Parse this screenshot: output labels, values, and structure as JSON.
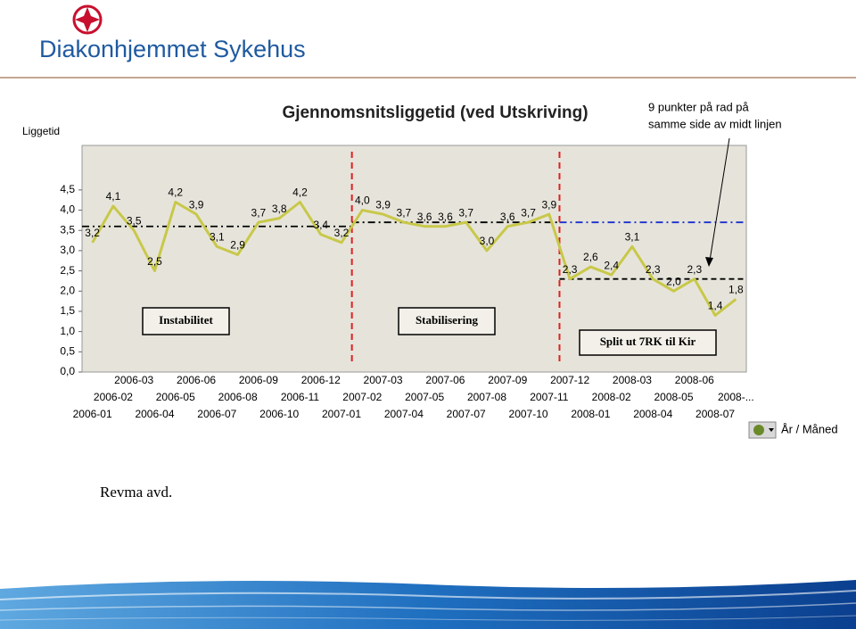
{
  "header": {
    "organization": "Diakonhjemmet Sykehus"
  },
  "chart_data": {
    "type": "line",
    "title": "Gjennomsnitsliggetid (ved Utskriving)",
    "y_label": "Liggetid",
    "categories": [
      "2006-01",
      "2006-02",
      "2006-03",
      "2006-04",
      "2006-05",
      "2006-06",
      "2006-07",
      "2006-08",
      "2006-09",
      "2006-10",
      "2006-11",
      "2006-12",
      "2007-01",
      "2007-02",
      "2007-03",
      "2007-04",
      "2007-05",
      "2007-06",
      "2007-07",
      "2007-08",
      "2007-09",
      "2007-10",
      "2007-11",
      "2007-12",
      "2008-01",
      "2008-02",
      "2008-03",
      "2008-04",
      "2008-05",
      "2008-06",
      "2008-07",
      "2008-..."
    ],
    "values": [
      3.2,
      4.1,
      3.5,
      2.5,
      4.2,
      3.9,
      3.1,
      2.9,
      3.7,
      3.8,
      4.2,
      3.4,
      3.2,
      4.0,
      3.9,
      3.7,
      3.6,
      3.6,
      3.7,
      3.0,
      3.6,
      3.7,
      3.9,
      2.3,
      2.6,
      2.4,
      3.1,
      2.3,
      2.0,
      2.3,
      1.4,
      1.8
    ],
    "value_labels": [
      "3,2",
      "4,1",
      "3,5",
      "2,5",
      "4,2",
      "3,9",
      "3,1",
      "2,9",
      "3,7",
      "3,8",
      "4,2",
      "3,4",
      "3,2",
      "4,0",
      "3,9",
      "3,7",
      "3,6",
      "3,6",
      "3,7",
      "3,0",
      "3,6",
      "3,7",
      "3,9",
      "2,3",
      "2,6",
      "2,4",
      "3,1",
      "2,3",
      "2,0",
      "2,3",
      "1,4",
      "1,8"
    ],
    "color": "#c8c84a",
    "ylim": [
      0,
      5.6
    ],
    "yticks": [
      {
        "value": 0,
        "label": "0,0"
      },
      {
        "value": 0.5,
        "label": "0,5"
      },
      {
        "value": 1,
        "label": "1,0"
      },
      {
        "value": 1.5,
        "label": "1,5"
      },
      {
        "value": 2,
        "label": "2,0"
      },
      {
        "value": 2.5,
        "label": "2,5"
      },
      {
        "value": 3,
        "label": "3,0"
      },
      {
        "value": 3.5,
        "label": "3,5"
      },
      {
        "value": 4,
        "label": "4,0"
      },
      {
        "value": 4.5,
        "label": "4,5"
      }
    ],
    "mean_lines": [
      {
        "value": 3.6,
        "start": "2006-01",
        "end": "2007-01",
        "color": "#000000"
      },
      {
        "value": 3.7,
        "start": "2007-02",
        "end": "2007-11",
        "color": "#000000"
      },
      {
        "value": 3.7,
        "start": "2007-12",
        "end": "2008-...",
        "color": "#1a2fd0"
      },
      {
        "value": 2.3,
        "start": "2007-12",
        "end": "2008-...",
        "color": "#000000"
      }
    ],
    "dividers": [
      "2007-02",
      "2007-12"
    ],
    "phases": [
      "Instabilitet",
      "Stabilisering",
      "Split ut 7RK til Kir"
    ],
    "annotation": [
      "9 punkter på rad på",
      "samme side av midt linjen"
    ]
  },
  "control": {
    "label": "År / Måned"
  },
  "caption": "Revma avd."
}
